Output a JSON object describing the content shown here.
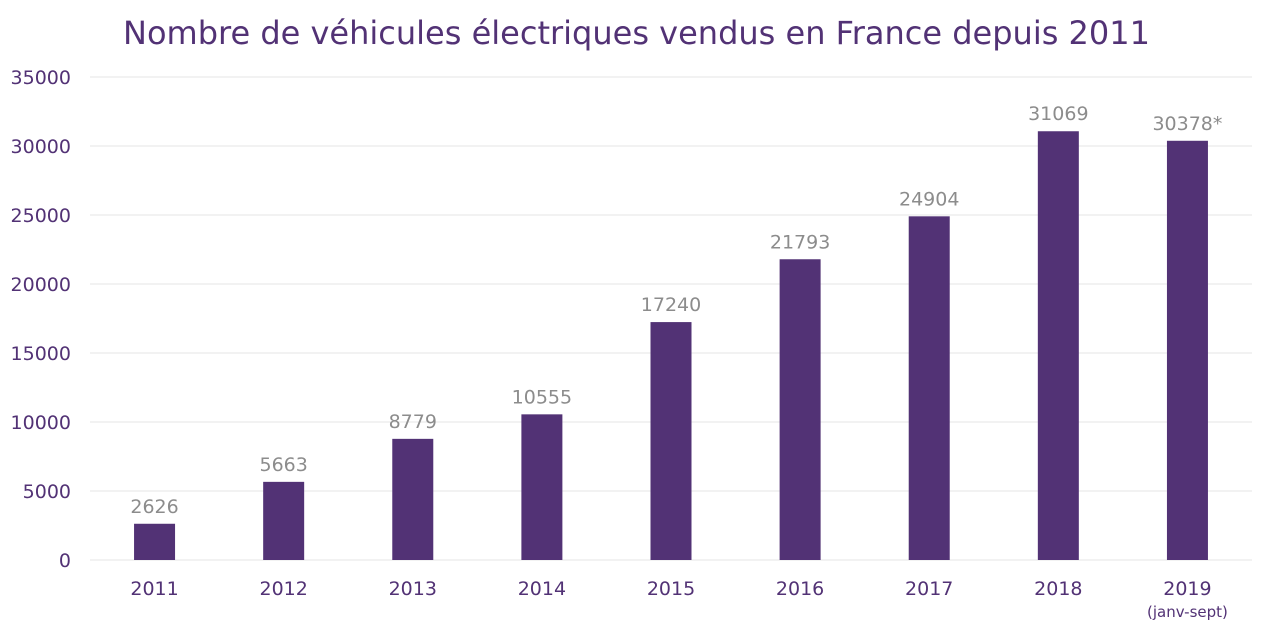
{
  "colors": {
    "bar": "#523275",
    "title": "#523275",
    "axis_text": "#523275",
    "data_label": "#8c8c8c",
    "gridline": "#e6e6e6"
  },
  "chart_data": {
    "type": "bar",
    "title": "Nombre de véhicules électriques vendus en France depuis 2011",
    "xlabel": "",
    "ylabel": "",
    "categories": [
      "2011",
      "2012",
      "2013",
      "2014",
      "2015",
      "2016",
      "2017",
      "2018",
      "2019"
    ],
    "category_notes": [
      "",
      "",
      "",
      "",
      "",
      "",
      "",
      "",
      "(janv-sept)"
    ],
    "values": [
      2626,
      5663,
      8779,
      10555,
      17240,
      21793,
      24904,
      31069,
      30378
    ],
    "data_labels": [
      "2626",
      "5663",
      "8779",
      "10555",
      "17240",
      "21793",
      "24904",
      "31069",
      "30378*"
    ],
    "ylim": [
      0,
      35000
    ],
    "yticks": [
      "0",
      "5000",
      "10000",
      "15000",
      "20000",
      "25000",
      "30000",
      "35000"
    ],
    "grid": true,
    "legend": "none"
  }
}
